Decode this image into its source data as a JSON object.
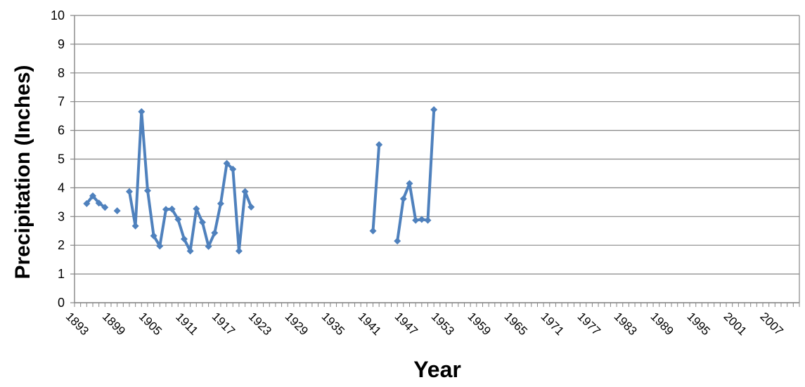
{
  "chart_data": {
    "type": "line",
    "title": "",
    "xlabel": "Year",
    "ylabel": "Precipitation (Inches)",
    "xlim": [
      1893,
      2012
    ],
    "ylim": [
      0,
      10
    ],
    "y_ticks": [
      "0",
      "1",
      "2",
      "3",
      "4",
      "5",
      "6",
      "7",
      "8",
      "9",
      "10"
    ],
    "x_ticks": [
      "1893",
      "1899",
      "1905",
      "1911",
      "1917",
      "1923",
      "1929",
      "1935",
      "1941",
      "1947",
      "1953",
      "1959",
      "1965",
      "1971",
      "1977",
      "1983",
      "1989",
      "1995",
      "2001",
      "2007"
    ],
    "grid": true,
    "legend": "none",
    "series": [
      {
        "color": "#4F81BD",
        "points": [
          {
            "x": 1895,
            "y": 3.45
          },
          {
            "x": 1896,
            "y": 3.72
          },
          {
            "x": 1897,
            "y": 3.47
          },
          {
            "x": 1898,
            "y": 3.32
          },
          {
            "x": 1899,
            "y": null
          },
          {
            "x": 1900,
            "y": 3.2
          },
          {
            "x": 1901,
            "y": null
          },
          {
            "x": 1902,
            "y": 3.87
          },
          {
            "x": 1903,
            "y": 2.67
          },
          {
            "x": 1904,
            "y": 6.65
          },
          {
            "x": 1905,
            "y": 3.9
          },
          {
            "x": 1906,
            "y": 2.33
          },
          {
            "x": 1907,
            "y": 1.97
          },
          {
            "x": 1908,
            "y": 3.25
          },
          {
            "x": 1909,
            "y": 3.26
          },
          {
            "x": 1910,
            "y": 2.9
          },
          {
            "x": 1911,
            "y": 2.22
          },
          {
            "x": 1912,
            "y": 1.8
          },
          {
            "x": 1913,
            "y": 3.27
          },
          {
            "x": 1914,
            "y": 2.8
          },
          {
            "x": 1915,
            "y": 1.96
          },
          {
            "x": 1916,
            "y": 2.43
          },
          {
            "x": 1917,
            "y": 3.45
          },
          {
            "x": 1918,
            "y": 4.85
          },
          {
            "x": 1919,
            "y": 4.65
          },
          {
            "x": 1920,
            "y": 1.8
          },
          {
            "x": 1921,
            "y": 3.87
          },
          {
            "x": 1922,
            "y": 3.33
          },
          {
            "x": 1923,
            "y": null
          },
          {
            "x": 1942,
            "y": 2.5
          },
          {
            "x": 1943,
            "y": 5.5
          },
          {
            "x": 1944,
            "y": null
          },
          {
            "x": 1946,
            "y": 2.15
          },
          {
            "x": 1947,
            "y": 3.62
          },
          {
            "x": 1948,
            "y": 4.15
          },
          {
            "x": 1949,
            "y": 2.87
          },
          {
            "x": 1950,
            "y": 2.9
          },
          {
            "x": 1951,
            "y": 2.87
          },
          {
            "x": 1952,
            "y": 6.72
          }
        ]
      }
    ]
  }
}
